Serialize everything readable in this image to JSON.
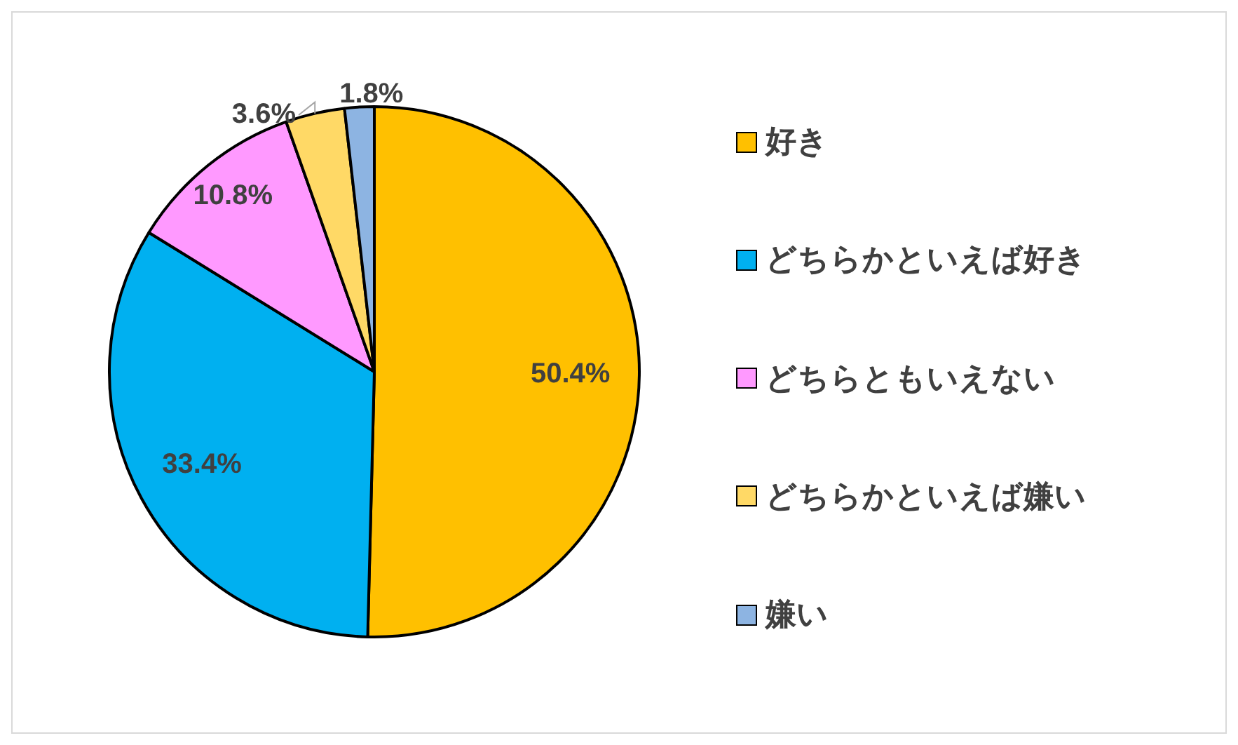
{
  "chart_data": {
    "type": "pie",
    "categories": [
      "好き",
      "どちらかといえば好き",
      "どちらともいえない",
      "どちらかといえば嫌い",
      "嫌い"
    ],
    "values": [
      50.4,
      33.4,
      10.8,
      3.6,
      1.8
    ],
    "colors": [
      "#ffc000",
      "#00b0f0",
      "#ff99ff",
      "#ffd966",
      "#8db4e2"
    ],
    "value_labels": [
      "50.4%",
      "33.4%",
      "10.8%",
      "3.6%",
      "1.8%"
    ],
    "legend": "right"
  }
}
